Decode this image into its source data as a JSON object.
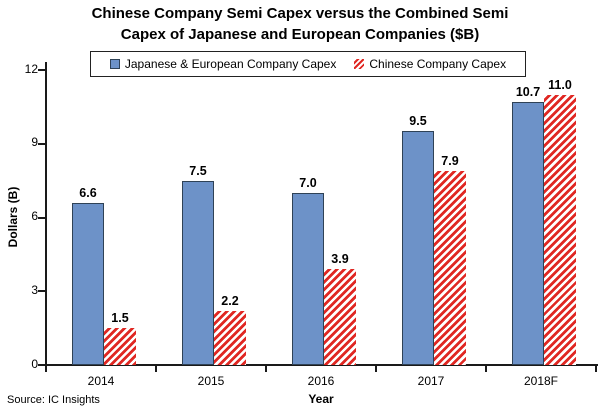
{
  "title": {
    "line1": "Chinese Company Semi Capex versus the Combined Semi",
    "line2": "Capex of Japanese and European Companies ($B)"
  },
  "source": "Source: IC Insights",
  "colors": {
    "bar_blue_fill": "#6D92C8",
    "bar_blue_border": "#2F4256",
    "bar_red": "#E02823",
    "axis": "#1a1a1a"
  },
  "chart_data": {
    "type": "bar",
    "title": "Chinese Company Semi Capex versus the Combined Semi Capex of Japanese and European Companies ($B)",
    "categories": [
      "2014",
      "2015",
      "2016",
      "2017",
      "2018F"
    ],
    "series": [
      {
        "name": "Japanese & European Company Capex",
        "values": [
          6.6,
          7.5,
          7.0,
          9.5,
          10.7
        ],
        "style": "solid",
        "color": "#6D92C8",
        "border": "#2F4256"
      },
      {
        "name": "Chinese Company Capex",
        "values": [
          1.5,
          2.2,
          3.9,
          7.9,
          11.0
        ],
        "style": "hatched",
        "color": "#E02823"
      }
    ],
    "xlabel": "Year",
    "ylabel": "Dollars (B)",
    "ylim": [
      0,
      12
    ],
    "yticks": [
      0,
      3,
      6,
      9,
      12
    ],
    "grid": false,
    "legend_position": "top",
    "value_labels": true
  }
}
